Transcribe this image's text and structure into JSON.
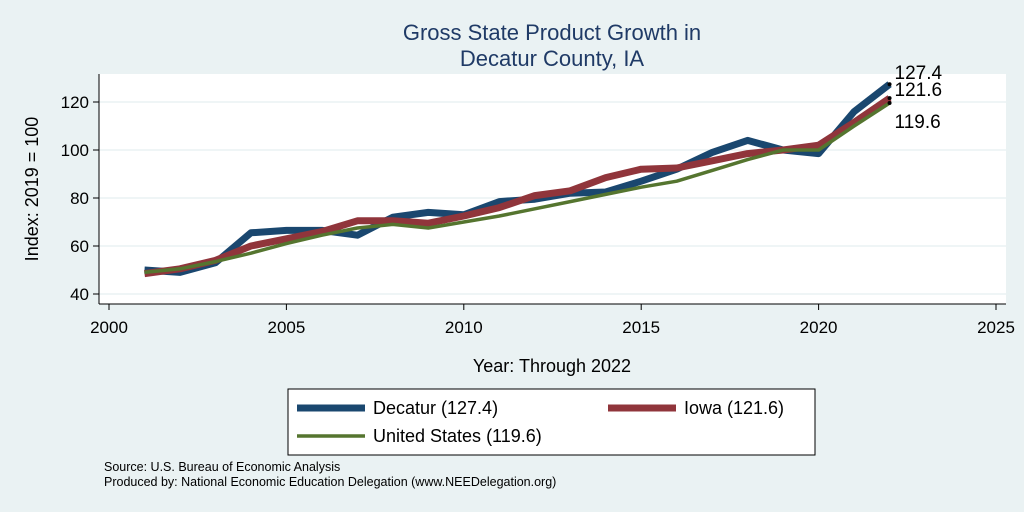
{
  "chart_data": {
    "type": "line",
    "title_lines": [
      "Gross State Product Growth in",
      "Decatur County, IA"
    ],
    "xlabel": "Year: Through 2022",
    "ylabel": "Index: 2019 = 100",
    "xlim": [
      2000,
      2025
    ],
    "ylim": [
      40,
      130
    ],
    "x_ticks": [
      2000,
      2005,
      2010,
      2015,
      2020,
      2025
    ],
    "y_ticks": [
      40,
      60,
      80,
      100,
      120
    ],
    "grid": true,
    "legend_position": "bottom",
    "x": [
      2001,
      2002,
      2003,
      2004,
      2005,
      2006,
      2007,
      2008,
      2009,
      2010,
      2011,
      2012,
      2013,
      2014,
      2015,
      2016,
      2017,
      2018,
      2019,
      2020,
      2021,
      2022
    ],
    "series": [
      {
        "name": "Decatur",
        "legend_label": "Decatur  (127.4)",
        "end_label": "127.4",
        "color": "#1a476f",
        "line_width": 7,
        "values": [
          50,
          49,
          53,
          65.5,
          66.5,
          66.5,
          64.5,
          72,
          74,
          73,
          78.5,
          79.5,
          82,
          82.5,
          87,
          92,
          99,
          104,
          100,
          98.5,
          116,
          127.4
        ]
      },
      {
        "name": "Iowa",
        "legend_label": "Iowa (121.6)",
        "end_label": "121.6",
        "color": "#90353b",
        "line_width": 7,
        "values": [
          48.5,
          50.5,
          54,
          60,
          63,
          66,
          70.5,
          70.5,
          69.5,
          72.5,
          76,
          81,
          83,
          88.5,
          92,
          92.5,
          95.5,
          98.5,
          100,
          102,
          111.5,
          121.6
        ]
      },
      {
        "name": "United States",
        "legend_label": "United States (119.6)",
        "end_label": "119.6",
        "color": "#55752f",
        "line_width": 3.5,
        "values": [
          49,
          50.5,
          53.5,
          57,
          61,
          64.5,
          67.5,
          69,
          67.5,
          70,
          72.5,
          75.5,
          78.5,
          81.5,
          84.5,
          87,
          91.5,
          96,
          100,
          100,
          110,
          119.6
        ]
      }
    ]
  },
  "footer": {
    "source": "Source: U.S. Bureau of Economic Analysis",
    "produced_by": "Produced by: National Economic Education Delegation (www.NEEDelegation.org)"
  },
  "colors": {
    "background": "#eaf2f3",
    "plot_background": "#ffffff",
    "grid": "#eaf2f3",
    "title": "#1f3a66"
  }
}
